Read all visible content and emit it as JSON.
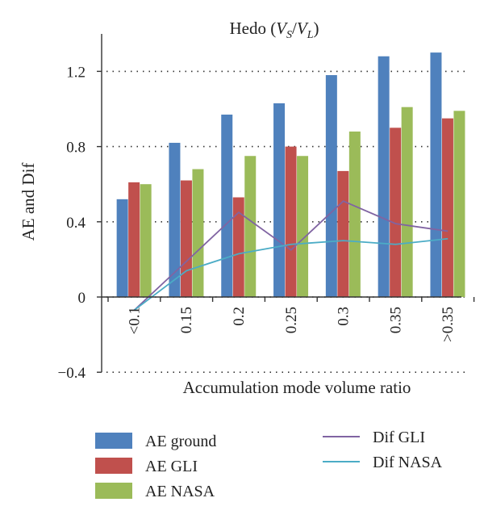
{
  "chart_data": {
    "type": "bar",
    "title": "Hedo (",
    "title_math": {
      "v1": "V",
      "s1": "S",
      "slash": "/",
      "v2": "V",
      "s2": "L",
      "close": ")"
    },
    "xlabel": "Accumulation mode volume ratio",
    "ylabel": "AE and Dif",
    "ylim": [
      -0.4,
      1.4
    ],
    "yticks": [
      {
        "value": -0.4,
        "label": "−0.4"
      },
      {
        "value": 0,
        "label": "0"
      },
      {
        "value": 0.4,
        "label": "0.4"
      },
      {
        "value": 0.8,
        "label": "0.8"
      },
      {
        "value": 1.2,
        "label": "1.2"
      }
    ],
    "grid": "dotted horizontal",
    "categories": [
      "<0.1",
      "0.15",
      "0.2",
      "0.25",
      "0.3",
      "0.35",
      ">0.35"
    ],
    "series": [
      {
        "name": "AE ground",
        "kind": "bar",
        "color": "#4f81bd",
        "values": [
          0.52,
          0.82,
          0.97,
          1.03,
          1.18,
          1.28,
          1.3
        ]
      },
      {
        "name": "AE GLI",
        "kind": "bar",
        "color": "#c0504d",
        "values": [
          0.61,
          0.62,
          0.53,
          0.8,
          0.67,
          0.9,
          0.95
        ]
      },
      {
        "name": "AE NASA",
        "kind": "bar",
        "color": "#9bbb59",
        "values": [
          0.6,
          0.68,
          0.75,
          0.75,
          0.88,
          1.01,
          0.99
        ]
      },
      {
        "name": "Dif GLI",
        "kind": "line",
        "color": "#8064a2",
        "values": [
          -0.07,
          0.19,
          0.45,
          0.25,
          0.51,
          0.39,
          0.35
        ]
      },
      {
        "name": "Dif NASA",
        "kind": "line",
        "color": "#4bacc6",
        "values": [
          -0.07,
          0.14,
          0.23,
          0.28,
          0.3,
          0.28,
          0.31
        ]
      }
    ],
    "legend": "bottom, two columns"
  }
}
